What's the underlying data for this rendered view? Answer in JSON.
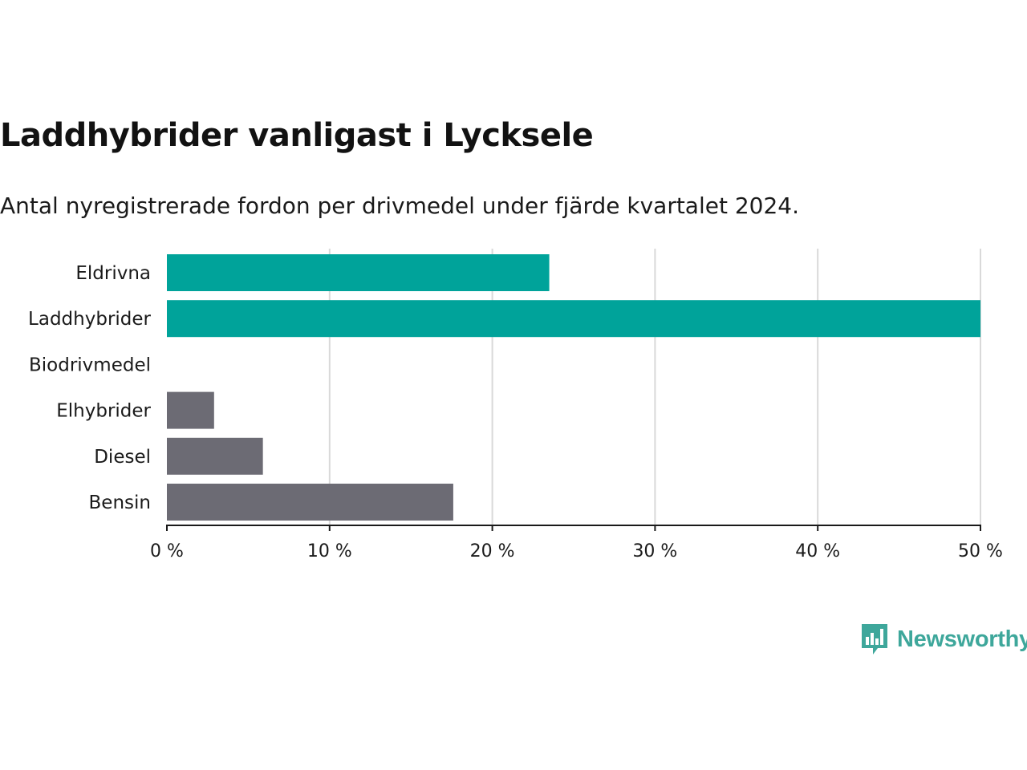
{
  "title": "Laddhybrider vanligast i Lycksele",
  "subtitle": "Antal nyregistrerade fordon per drivmedel under fjärde kvartalet 2024.",
  "brand": {
    "name": "Newsworthy",
    "icon": "bar-chart-speech-bubble-icon",
    "color": "#3ea79b"
  },
  "colors": {
    "highlight": "#00a39a",
    "default": "#6c6b74",
    "grid": "#d9d9d9",
    "axis": "#1a1a1a"
  },
  "chart_data": {
    "type": "bar",
    "orientation": "horizontal",
    "categories": [
      "Eldrivna",
      "Laddhybrider",
      "Biodrivmedel",
      "Elhybrider",
      "Diesel",
      "Bensin"
    ],
    "values": [
      23.5,
      50.0,
      0,
      2.9,
      5.9,
      17.6
    ],
    "highlighted": [
      true,
      true,
      false,
      false,
      false,
      false
    ],
    "unit": "%",
    "xlim": [
      0,
      50
    ],
    "xticks": [
      0,
      10,
      20,
      30,
      40,
      50
    ],
    "xtick_labels": [
      "0 %",
      "10 %",
      "20 %",
      "30 %",
      "40 %",
      "50 %"
    ],
    "grid": true,
    "legend": "none"
  }
}
